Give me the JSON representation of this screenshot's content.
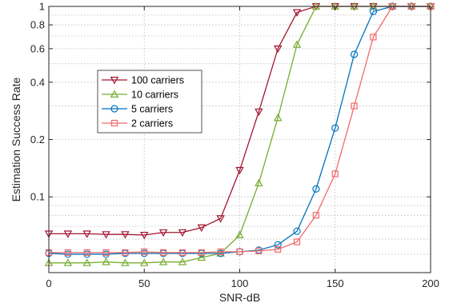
{
  "chart_data": {
    "type": "line",
    "title": "",
    "xlabel": "SNR-dB",
    "ylabel": "Estimation Success Rate",
    "xlim": [
      0,
      200
    ],
    "ylim": [
      0.04,
      1
    ],
    "y_scale": "log",
    "grid": true,
    "legend_placement": "center-left",
    "x_ticks": [
      0,
      50,
      100,
      150,
      200
    ],
    "y_ticks": [
      {
        "value": 0.1,
        "label": "0.1"
      },
      {
        "value": 0.2,
        "label": "0.2"
      },
      {
        "value": 0.4,
        "label": "0.4"
      },
      {
        "value": 0.6,
        "label": "0.6"
      },
      {
        "value": 0.8,
        "label": "0.8"
      },
      {
        "value": 1,
        "label": "1"
      }
    ],
    "y_minor_gridlines": [
      0.05,
      0.06,
      0.07,
      0.08,
      0.09,
      0.3,
      0.5,
      0.7,
      0.9
    ],
    "x": [
      0,
      10,
      20,
      30,
      40,
      50,
      60,
      70,
      80,
      90,
      100,
      110,
      120,
      130,
      140,
      150,
      160,
      170,
      180,
      190,
      200
    ],
    "series": [
      {
        "name": "100 carriers",
        "color": "#a2142f",
        "marker": "triangle-down",
        "values": [
          0.064,
          0.064,
          0.064,
          0.0635,
          0.0635,
          0.063,
          0.065,
          0.065,
          0.069,
          0.077,
          0.138,
          0.28,
          0.6,
          0.93,
          1,
          1,
          1,
          1,
          1,
          1,
          1
        ]
      },
      {
        "name": "10 carriers",
        "color": "#77ac30",
        "marker": "triangle-up",
        "values": [
          0.045,
          0.045,
          0.045,
          0.0455,
          0.045,
          0.045,
          0.0455,
          0.0455,
          0.048,
          0.0505,
          0.063,
          0.118,
          0.26,
          0.63,
          1,
          1,
          1,
          1,
          1,
          1,
          1
        ]
      },
      {
        "name": "5 carriers",
        "color": "#0072bd",
        "marker": "circle",
        "values": [
          0.0505,
          0.05,
          0.05,
          0.05,
          0.0505,
          0.0505,
          0.0505,
          0.0505,
          0.0505,
          0.0505,
          0.0515,
          0.0525,
          0.056,
          0.066,
          0.11,
          0.23,
          0.56,
          0.94,
          1,
          1,
          1
        ]
      },
      {
        "name": "2 carriers",
        "color": "#f26a6a",
        "marker": "square",
        "values": [
          0.051,
          0.051,
          0.051,
          0.051,
          0.051,
          0.0515,
          0.051,
          0.051,
          0.051,
          0.0515,
          0.0515,
          0.052,
          0.053,
          0.058,
          0.08,
          0.132,
          0.3,
          0.69,
          1,
          1,
          1
        ]
      }
    ]
  }
}
